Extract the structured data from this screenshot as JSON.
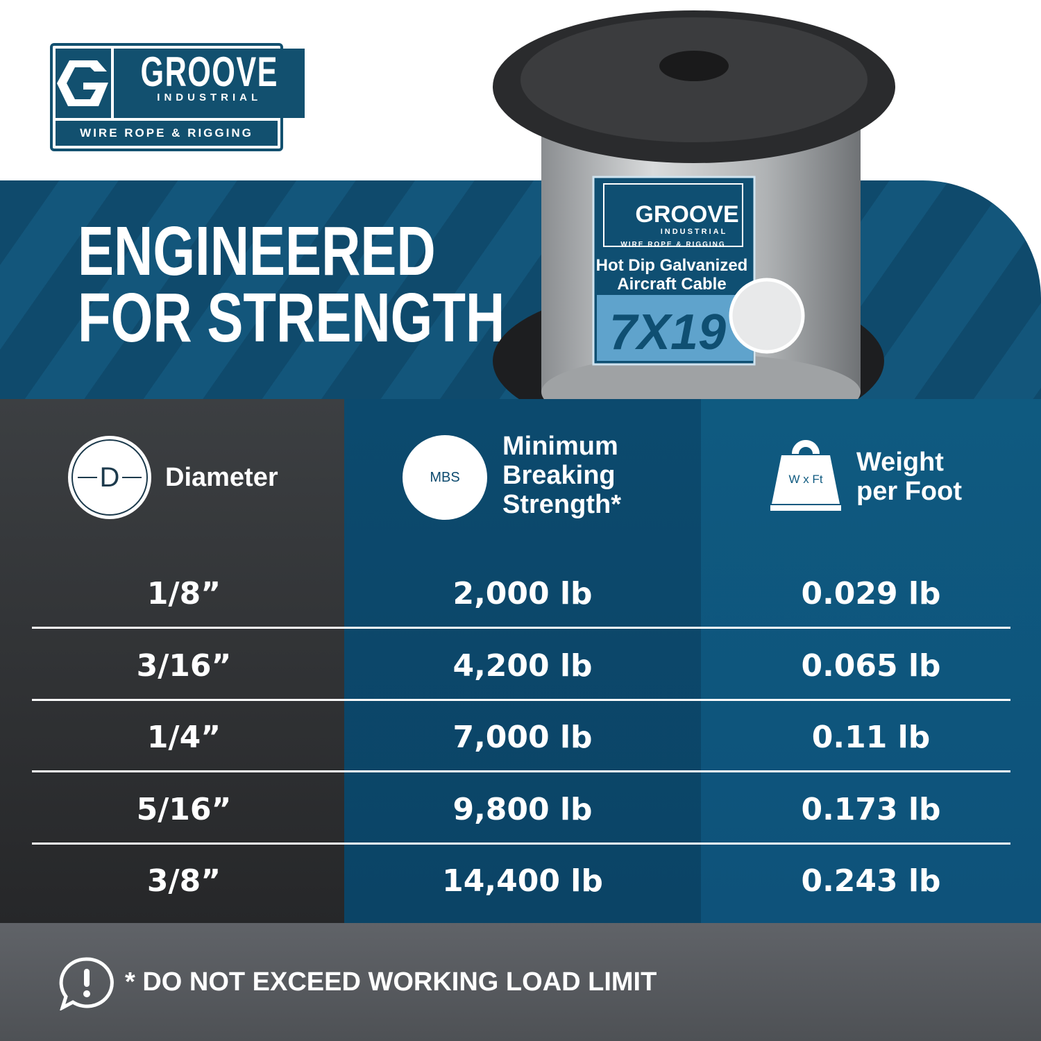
{
  "brand": {
    "name": "GROOVE",
    "sub": "INDUSTRIAL",
    "tagline": "WIRE ROPE & RIGGING",
    "color": "#12506f"
  },
  "headline": {
    "line1": "ENGINEERED",
    "line2": "FOR STRENGTH"
  },
  "spool_label": {
    "brand": "GROOVE",
    "sub": "INDUSTRIAL",
    "tagline": "WIRE ROPE & RIGGING",
    "product_line1": "Hot Dip Galvanized",
    "product_line2": "Aircraft Cable",
    "construction": "7X19"
  },
  "table": {
    "headers": [
      {
        "icon": "diameter-icon",
        "icon_text": "D",
        "label": "Diameter"
      },
      {
        "icon": "mbs-icon",
        "icon_text": "MBS",
        "label_lines": [
          "Minimum",
          "Breaking",
          "Strength*"
        ]
      },
      {
        "icon": "weight-icon",
        "icon_text": "W x Ft",
        "label_lines": [
          "Weight",
          "per Foot"
        ]
      }
    ],
    "rows": [
      [
        "1/8”",
        "2,000 lb",
        "0.029 lb"
      ],
      [
        "3/16”",
        "4,200 lb",
        "0.065 lb"
      ],
      [
        "1/4”",
        "7,000 lb",
        "0.11 lb"
      ],
      [
        "5/16”",
        "9,800 lb",
        "0.173 lb"
      ],
      [
        "3/8”",
        "14,400 lb",
        "0.243 lb"
      ]
    ]
  },
  "footer": {
    "icon": "warning-speech-icon",
    "text": "* DO NOT EXCEED WORKING LOAD LIMIT"
  },
  "colors": {
    "dark": "#3a3d40",
    "blue1": "#0c4a6e",
    "blue2": "#0f5a80",
    "footer": "#5b5e62"
  }
}
